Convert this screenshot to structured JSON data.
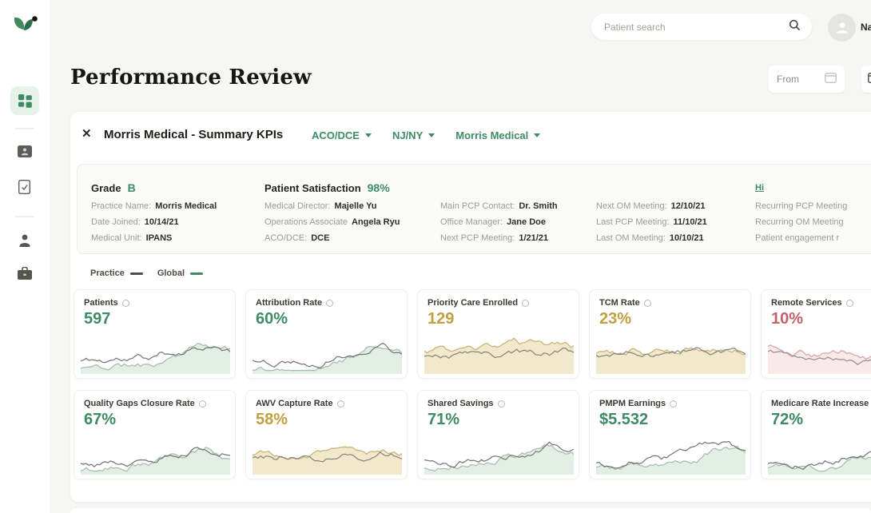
{
  "colors": {
    "accent_green": "#3e8b64",
    "amber": "#c0a040",
    "red": "#c2636c",
    "spark_palettes": {
      "green": {
        "area": "#e3efe5",
        "line": "#a9bcb0",
        "gray": "#6f756f"
      },
      "amber": {
        "area": "#f2e9cd",
        "line": "#c9b477",
        "gray": "#83837a"
      },
      "red": {
        "area": "#f8eaea",
        "line": "#d8a6ab",
        "gray": "#8e8e8a"
      }
    }
  },
  "topbar": {
    "search_placeholder": "Patient search",
    "user_name": "Na"
  },
  "page": {
    "title": "Performance Review",
    "from_label": "From"
  },
  "panel": {
    "close_glyph": "✕",
    "title": "Morris Medical - Summary KPIs",
    "filters": [
      {
        "label": "ACO/DCE"
      },
      {
        "label": "NJ/NY"
      },
      {
        "label": "Morris Medical"
      }
    ],
    "summary": {
      "columns": [
        {
          "header_label": "Grade",
          "header_value": "B",
          "rows": [
            {
              "label": "Practice Name:",
              "value": "Morris Medical"
            },
            {
              "label": "Date Joined:",
              "value": "10/14/21"
            },
            {
              "label": "Medical Unit:",
              "value": "IPANS"
            }
          ]
        },
        {
          "header_label": "Patient Satisfaction",
          "header_value": "98%",
          "rows": [
            {
              "label": "Medical Director:",
              "value": "Majelle Yu"
            },
            {
              "label": "Operations Associate",
              "value": "Angela Ryu"
            },
            {
              "label": "ACO/DCE:",
              "value": "DCE"
            }
          ]
        },
        {
          "rows": [
            {
              "label": "Main PCP Contact:",
              "value": "Dr. Smith"
            },
            {
              "label": "Office Manager:",
              "value": "Jane Doe"
            },
            {
              "label": "Next PCP Meeting:",
              "value": "1/21/21"
            }
          ]
        },
        {
          "rows": [
            {
              "label": "Next OM Meeting:",
              "value": "12/10/21"
            },
            {
              "label": "Last PCP Meeting:",
              "value": "11/10/21"
            },
            {
              "label": "Last OM Meeting:",
              "value": "10/10/21"
            }
          ]
        },
        {
          "link": "Hi",
          "rows": [
            {
              "label": "Recurring PCP Meeting",
              "value": ""
            },
            {
              "label": "Recurring OM Meeting",
              "value": ""
            },
            {
              "label": "Patient engagement r",
              "value": ""
            }
          ]
        }
      ]
    },
    "legend": [
      {
        "label": "Practice",
        "color": "#4a4f4a"
      },
      {
        "label": "Global",
        "color": "#3e8b64"
      }
    ],
    "cards": [
      {
        "label": "Patients",
        "value": "597",
        "tone": "green",
        "trend": "up",
        "seed": 11
      },
      {
        "label": "Attribution Rate",
        "value": "60%",
        "tone": "green",
        "trend": "up",
        "seed": 22
      },
      {
        "label": "Priority Care Enrolled",
        "value": "129",
        "tone": "amber",
        "trend": "flat",
        "seed": 33
      },
      {
        "label": "TCM Rate",
        "value": "23%",
        "tone": "amber",
        "trend": "flat",
        "seed": 44
      },
      {
        "label": "Remote Services",
        "value": "10%",
        "tone": "red",
        "trend": "down",
        "seed": 55
      },
      {
        "label": "Quality Gaps Closure Rate",
        "value": "67%",
        "tone": "green",
        "trend": "up",
        "seed": 66
      },
      {
        "label": "AWV Capture Rate",
        "value": "58%",
        "tone": "amber",
        "trend": "flat",
        "seed": 77
      },
      {
        "label": "Shared Savings",
        "value": "71%",
        "tone": "green",
        "trend": "up",
        "seed": 88
      },
      {
        "label": "PMPM Earnings",
        "value": "$5.532",
        "tone": "green",
        "trend": "up",
        "seed": 99
      },
      {
        "label": "Medicare Rate Increase",
        "value": "72%",
        "tone": "green",
        "trend": "up",
        "seed": 101
      }
    ]
  }
}
